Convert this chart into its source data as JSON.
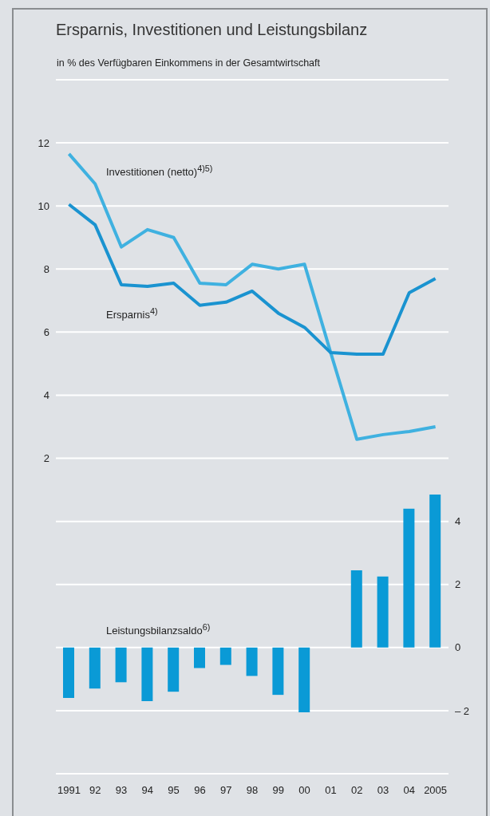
{
  "chart_data": {
    "type": "line",
    "title": "Ersparnis, Investitionen und Leistungsbilanz",
    "subtitle": "in % des Verfügbaren Einkommens in der Gesamtwirtschaft",
    "categories": [
      "1991",
      "92",
      "93",
      "94",
      "95",
      "96",
      "97",
      "98",
      "99",
      "00",
      "01",
      "02",
      "03",
      "04",
      "2005"
    ],
    "series": [
      {
        "name": "Investitionen (netto)$^{4)5)}$",
        "color": "#3fb1e0",
        "values": [
          11.65,
          10.7,
          8.7,
          9.25,
          9.0,
          7.55,
          7.5,
          8.15,
          8.0,
          8.15,
          5.35,
          2.6,
          2.75,
          2.85,
          3.0
        ]
      },
      {
        "name": "Ersparnis$^{4)}$",
        "color": "#1a93d0",
        "values": [
          10.05,
          9.4,
          7.5,
          7.45,
          7.55,
          6.85,
          6.95,
          7.3,
          6.6,
          6.15,
          5.35,
          5.3,
          5.3,
          7.25,
          7.7
        ]
      },
      {
        "name": "Leistungsbilanzsaldo$^{6)}$",
        "type": "bar",
        "axis": "y2",
        "color": "#0a9ad6",
        "values": [
          -1.6,
          -1.3,
          -1.1,
          -1.7,
          -1.4,
          -0.65,
          -0.55,
          -0.9,
          -1.5,
          -2.05,
          0,
          2.45,
          2.25,
          4.4,
          4.85
        ]
      }
    ],
    "ylim": [
      -8,
      14
    ],
    "yticks": [
      2,
      4,
      6,
      8,
      10,
      12
    ],
    "y2lim": [
      -4,
      18
    ],
    "y2ticks": [
      {
        "value": -2,
        "label": "– 2"
      },
      0,
      2,
      4
    ],
    "grid": "y",
    "legend": false,
    "marker": "none",
    "line_style": "solid"
  }
}
